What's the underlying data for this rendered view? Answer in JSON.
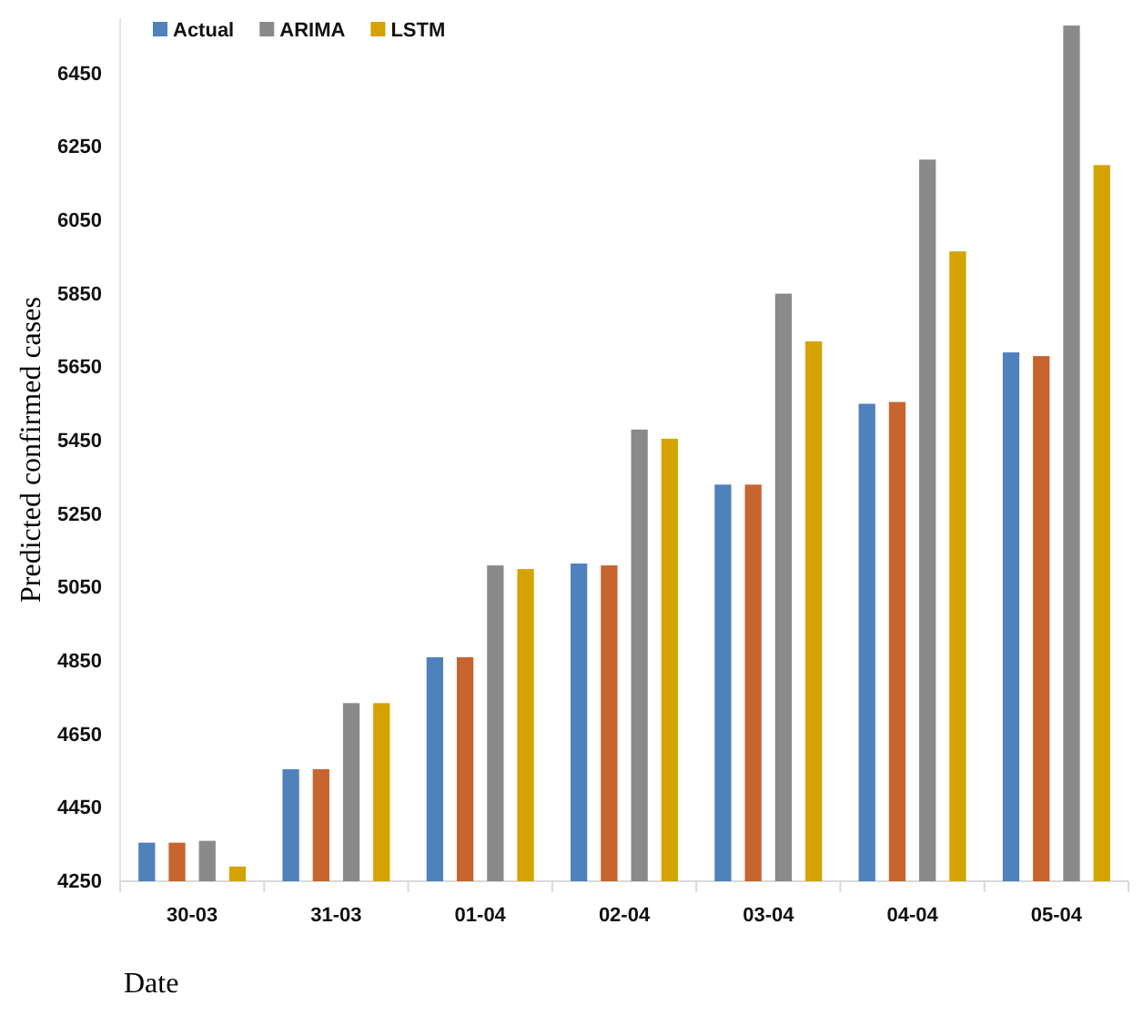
{
  "chart_data": {
    "type": "bar",
    "xlabel": "Date",
    "ylabel": "Predicted confirmed cases",
    "categories": [
      "30-03",
      "31-03",
      "01-04",
      "02-04",
      "03-04",
      "04-04",
      "05-04"
    ],
    "series": [
      {
        "name": "Actual",
        "color": "#4f81bd",
        "values": [
          4355,
          4555,
          4860,
          5115,
          5330,
          5550,
          5690
        ]
      },
      {
        "color": "#c8642f",
        "values": [
          4355,
          4555,
          4860,
          5110,
          5330,
          5555,
          5680
        ]
      },
      {
        "name": "ARIMA",
        "color": "#8a8a8a",
        "values": [
          4360,
          4735,
          5110,
          5480,
          5850,
          6215,
          6580
        ]
      },
      {
        "name": "LSTM",
        "color": "#d4a300",
        "values": [
          4290,
          4735,
          5100,
          5455,
          5720,
          5965,
          6200
        ]
      }
    ],
    "ylim": [
      4250,
      6600
    ],
    "yticks": [
      4250,
      4450,
      4650,
      4850,
      5050,
      5250,
      5450,
      5650,
      5850,
      6050,
      6250,
      6450
    ],
    "grid": false,
    "legend": "top left"
  }
}
